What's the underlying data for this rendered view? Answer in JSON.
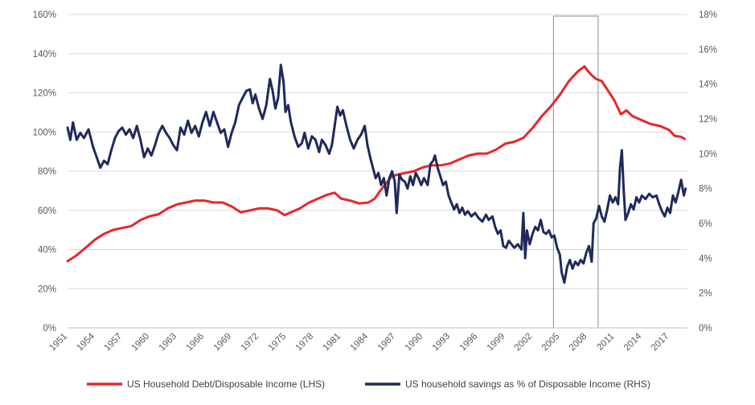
{
  "chart_data": {
    "type": "line",
    "title": "",
    "xlabel": "",
    "ylabel_left": "",
    "ylabel_right": "",
    "x_tick_labels": [
      "1951",
      "1954",
      "1957",
      "1960",
      "1963",
      "1966",
      "1969",
      "1972",
      "1975",
      "1978",
      "1981",
      "1984",
      "1987",
      "1990",
      "1993",
      "1996",
      "1999",
      "2002",
      "2005",
      "2008",
      "2011",
      "2014",
      "2017"
    ],
    "xlim": [
      1951,
      2019
    ],
    "ylim_left": [
      0,
      160
    ],
    "ylim_right": [
      0,
      18
    ],
    "y_left_ticks": [
      "0%",
      "20%",
      "40%",
      "60%",
      "80%",
      "100%",
      "120%",
      "140%",
      "160%"
    ],
    "y_right_ticks": [
      "0%",
      "2%",
      "4%",
      "6%",
      "8%",
      "10%",
      "12%",
      "14%",
      "16%",
      "18%"
    ],
    "grid": "horizontal",
    "legend_position": "bottom",
    "highlight_box": {
      "x_start": 2004.3,
      "x_end": 2009.2
    },
    "series": [
      {
        "name": "US Household Debt/Disposable Income (LHS)",
        "axis": "left",
        "color": "#e8262b",
        "points": [
          [
            1951.0,
            34
          ],
          [
            1952.0,
            37
          ],
          [
            1953.0,
            41
          ],
          [
            1954.0,
            45
          ],
          [
            1955.0,
            48
          ],
          [
            1956.0,
            50
          ],
          [
            1957.0,
            51
          ],
          [
            1958.0,
            52
          ],
          [
            1959.0,
            55
          ],
          [
            1960.0,
            57
          ],
          [
            1961.0,
            58
          ],
          [
            1962.0,
            61
          ],
          [
            1963.0,
            63
          ],
          [
            1964.0,
            64
          ],
          [
            1965.0,
            65
          ],
          [
            1966.0,
            65
          ],
          [
            1967.0,
            64
          ],
          [
            1968.0,
            64
          ],
          [
            1969.0,
            62
          ],
          [
            1970.0,
            59
          ],
          [
            1971.0,
            60
          ],
          [
            1972.0,
            61
          ],
          [
            1973.0,
            61
          ],
          [
            1974.0,
            60
          ],
          [
            1974.8,
            57.5
          ],
          [
            1975.5,
            59
          ],
          [
            1976.5,
            61
          ],
          [
            1977.5,
            64
          ],
          [
            1978.5,
            66
          ],
          [
            1979.5,
            68
          ],
          [
            1980.3,
            69
          ],
          [
            1981.0,
            66
          ],
          [
            1982.0,
            65
          ],
          [
            1983.0,
            63.5
          ],
          [
            1984.0,
            64
          ],
          [
            1984.7,
            66
          ],
          [
            1985.3,
            70
          ],
          [
            1986.0,
            74
          ],
          [
            1986.5,
            77
          ],
          [
            1987.0,
            78
          ],
          [
            1988.0,
            79
          ],
          [
            1989.0,
            80
          ],
          [
            1990.0,
            82
          ],
          [
            1991.0,
            83
          ],
          [
            1992.0,
            83
          ],
          [
            1993.0,
            84
          ],
          [
            1994.0,
            86
          ],
          [
            1995.0,
            88
          ],
          [
            1996.0,
            89
          ],
          [
            1997.0,
            89
          ],
          [
            1998.0,
            91
          ],
          [
            1999.0,
            94
          ],
          [
            2000.0,
            95
          ],
          [
            2001.0,
            97
          ],
          [
            2002.0,
            102
          ],
          [
            2003.0,
            108
          ],
          [
            2004.0,
            113
          ],
          [
            2005.0,
            119
          ],
          [
            2006.0,
            126
          ],
          [
            2007.0,
            131
          ],
          [
            2007.7,
            133.5
          ],
          [
            2008.1,
            131
          ],
          [
            2008.5,
            129
          ],
          [
            2009.0,
            127
          ],
          [
            2009.6,
            126
          ],
          [
            2010.3,
            121
          ],
          [
            2011.0,
            116
          ],
          [
            2011.7,
            109
          ],
          [
            2012.3,
            111
          ],
          [
            2013.0,
            108
          ],
          [
            2014.0,
            106
          ],
          [
            2015.0,
            104
          ],
          [
            2016.0,
            103
          ],
          [
            2017.0,
            101
          ],
          [
            2017.6,
            98
          ],
          [
            2018.3,
            97.5
          ],
          [
            2018.7,
            96.5
          ]
        ]
      },
      {
        "name": "US household savings as % of Disposable Income (RHS)",
        "axis": "right",
        "color": "#1f2a5a",
        "points": [
          [
            1951.0,
            11.5
          ],
          [
            1951.3,
            10.8
          ],
          [
            1951.6,
            11.8
          ],
          [
            1952.0,
            10.8
          ],
          [
            1952.4,
            11.2
          ],
          [
            1952.8,
            10.9
          ],
          [
            1953.3,
            11.4
          ],
          [
            1953.8,
            10.4
          ],
          [
            1954.2,
            9.8
          ],
          [
            1954.6,
            9.2
          ],
          [
            1955.0,
            9.6
          ],
          [
            1955.4,
            9.4
          ],
          [
            1955.8,
            10.2
          ],
          [
            1956.2,
            10.9
          ],
          [
            1956.6,
            11.3
          ],
          [
            1957.0,
            11.5
          ],
          [
            1957.4,
            11.1
          ],
          [
            1957.8,
            11.4
          ],
          [
            1958.2,
            10.9
          ],
          [
            1958.6,
            11.6
          ],
          [
            1959.0,
            10.8
          ],
          [
            1959.4,
            9.8
          ],
          [
            1959.8,
            10.3
          ],
          [
            1960.2,
            9.9
          ],
          [
            1960.6,
            10.5
          ],
          [
            1961.0,
            11.2
          ],
          [
            1961.4,
            11.6
          ],
          [
            1961.8,
            11.2
          ],
          [
            1962.2,
            10.9
          ],
          [
            1962.6,
            10.5
          ],
          [
            1963.0,
            10.2
          ],
          [
            1963.4,
            11.5
          ],
          [
            1963.8,
            11.1
          ],
          [
            1964.2,
            11.9
          ],
          [
            1964.6,
            11.2
          ],
          [
            1965.0,
            11.6
          ],
          [
            1965.4,
            11.0
          ],
          [
            1965.8,
            11.8
          ],
          [
            1966.2,
            12.4
          ],
          [
            1966.6,
            11.6
          ],
          [
            1967.0,
            12.4
          ],
          [
            1967.4,
            11.8
          ],
          [
            1967.8,
            11.2
          ],
          [
            1968.2,
            11.4
          ],
          [
            1968.6,
            10.4
          ],
          [
            1969.0,
            11.2
          ],
          [
            1969.4,
            11.8
          ],
          [
            1969.8,
            12.8
          ],
          [
            1970.2,
            13.2
          ],
          [
            1970.6,
            13.6
          ],
          [
            1971.0,
            13.7
          ],
          [
            1971.3,
            12.9
          ],
          [
            1971.6,
            13.4
          ],
          [
            1972.0,
            12.6
          ],
          [
            1972.4,
            12.0
          ],
          [
            1972.8,
            12.8
          ],
          [
            1973.2,
            14.3
          ],
          [
            1973.5,
            13.6
          ],
          [
            1973.8,
            12.6
          ],
          [
            1974.1,
            13.2
          ],
          [
            1974.4,
            15.1
          ],
          [
            1974.7,
            14.1
          ],
          [
            1974.9,
            12.4
          ],
          [
            1975.2,
            12.8
          ],
          [
            1975.5,
            11.8
          ],
          [
            1975.9,
            11.0
          ],
          [
            1976.3,
            10.4
          ],
          [
            1976.7,
            10.6
          ],
          [
            1977.0,
            11.2
          ],
          [
            1977.4,
            10.3
          ],
          [
            1977.8,
            11.0
          ],
          [
            1978.2,
            10.8
          ],
          [
            1978.6,
            10.1
          ],
          [
            1978.9,
            10.8
          ],
          [
            1979.3,
            10.5
          ],
          [
            1979.7,
            10.0
          ],
          [
            1980.0,
            10.5
          ],
          [
            1980.3,
            11.6
          ],
          [
            1980.6,
            12.7
          ],
          [
            1980.9,
            12.2
          ],
          [
            1981.2,
            12.5
          ],
          [
            1981.6,
            11.6
          ],
          [
            1982.0,
            10.8
          ],
          [
            1982.4,
            10.3
          ],
          [
            1982.8,
            10.8
          ],
          [
            1983.2,
            11.1
          ],
          [
            1983.6,
            11.6
          ],
          [
            1983.9,
            10.5
          ],
          [
            1984.2,
            9.8
          ],
          [
            1984.5,
            9.2
          ],
          [
            1984.8,
            8.6
          ],
          [
            1985.1,
            8.9
          ],
          [
            1985.4,
            8.2
          ],
          [
            1985.7,
            8.6
          ],
          [
            1986.0,
            7.6
          ],
          [
            1986.3,
            8.6
          ],
          [
            1986.6,
            9.0
          ],
          [
            1986.9,
            8.4
          ],
          [
            1987.1,
            6.6
          ],
          [
            1987.4,
            8.8
          ],
          [
            1987.7,
            8.5
          ],
          [
            1988.0,
            8.4
          ],
          [
            1988.3,
            8.0
          ],
          [
            1988.6,
            8.7
          ],
          [
            1988.9,
            8.2
          ],
          [
            1989.2,
            8.9
          ],
          [
            1989.5,
            8.6
          ],
          [
            1989.8,
            8.2
          ],
          [
            1990.1,
            8.6
          ],
          [
            1990.5,
            8.2
          ],
          [
            1990.8,
            9.4
          ],
          [
            1991.1,
            9.6
          ],
          [
            1991.3,
            9.9
          ],
          [
            1991.6,
            9.2
          ],
          [
            1991.9,
            8.7
          ],
          [
            1992.2,
            8.2
          ],
          [
            1992.5,
            8.4
          ],
          [
            1992.8,
            7.6
          ],
          [
            1993.1,
            7.2
          ],
          [
            1993.4,
            6.8
          ],
          [
            1993.7,
            7.1
          ],
          [
            1994.0,
            6.6
          ],
          [
            1994.3,
            6.9
          ],
          [
            1994.6,
            6.5
          ],
          [
            1994.9,
            6.7
          ],
          [
            1995.3,
            6.4
          ],
          [
            1995.7,
            6.6
          ],
          [
            1996.1,
            6.3
          ],
          [
            1996.5,
            6.1
          ],
          [
            1996.9,
            6.5
          ],
          [
            1997.2,
            6.2
          ],
          [
            1997.6,
            6.4
          ],
          [
            1997.9,
            5.8
          ],
          [
            1998.2,
            5.4
          ],
          [
            1998.5,
            5.6
          ],
          [
            1998.8,
            4.7
          ],
          [
            1999.1,
            4.6
          ],
          [
            1999.4,
            5.0
          ],
          [
            1999.7,
            4.8
          ],
          [
            2000.0,
            4.6
          ],
          [
            2000.4,
            4.8
          ],
          [
            2000.8,
            4.5
          ],
          [
            2001.0,
            6.6
          ],
          [
            2001.2,
            4.0
          ],
          [
            2001.4,
            5.6
          ],
          [
            2001.7,
            4.8
          ],
          [
            2002.0,
            5.4
          ],
          [
            2002.3,
            5.8
          ],
          [
            2002.6,
            5.6
          ],
          [
            2002.9,
            6.2
          ],
          [
            2003.2,
            5.5
          ],
          [
            2003.5,
            5.4
          ],
          [
            2003.8,
            5.6
          ],
          [
            2004.1,
            5.2
          ],
          [
            2004.4,
            5.3
          ],
          [
            2004.7,
            4.6
          ],
          [
            2005.0,
            4.2
          ],
          [
            2005.2,
            3.2
          ],
          [
            2005.5,
            2.6
          ],
          [
            2005.8,
            3.5
          ],
          [
            2006.1,
            3.9
          ],
          [
            2006.4,
            3.4
          ],
          [
            2006.7,
            3.8
          ],
          [
            2007.0,
            3.6
          ],
          [
            2007.3,
            3.9
          ],
          [
            2007.6,
            3.7
          ],
          [
            2007.9,
            4.3
          ],
          [
            2008.2,
            4.7
          ],
          [
            2008.5,
            3.8
          ],
          [
            2008.7,
            6.0
          ],
          [
            2009.0,
            6.3
          ],
          [
            2009.3,
            7.0
          ],
          [
            2009.6,
            6.4
          ],
          [
            2009.9,
            6.1
          ],
          [
            2010.2,
            6.8
          ],
          [
            2010.5,
            7.6
          ],
          [
            2010.8,
            7.2
          ],
          [
            2011.1,
            7.5
          ],
          [
            2011.4,
            7.1
          ],
          [
            2011.6,
            9.2
          ],
          [
            2011.8,
            10.2
          ],
          [
            2012.0,
            8.0
          ],
          [
            2012.2,
            6.2
          ],
          [
            2012.5,
            6.6
          ],
          [
            2012.8,
            7.1
          ],
          [
            2013.1,
            6.8
          ],
          [
            2013.4,
            7.5
          ],
          [
            2013.7,
            7.2
          ],
          [
            2014.0,
            7.6
          ],
          [
            2014.4,
            7.4
          ],
          [
            2014.8,
            7.7
          ],
          [
            2015.2,
            7.5
          ],
          [
            2015.6,
            7.6
          ],
          [
            2015.9,
            7.1
          ],
          [
            2016.2,
            6.7
          ],
          [
            2016.5,
            6.4
          ],
          [
            2016.8,
            6.9
          ],
          [
            2017.1,
            6.6
          ],
          [
            2017.4,
            7.6
          ],
          [
            2017.7,
            7.2
          ],
          [
            2018.0,
            7.8
          ],
          [
            2018.3,
            8.5
          ],
          [
            2018.6,
            7.6
          ],
          [
            2018.8,
            8.0
          ]
        ]
      }
    ]
  }
}
